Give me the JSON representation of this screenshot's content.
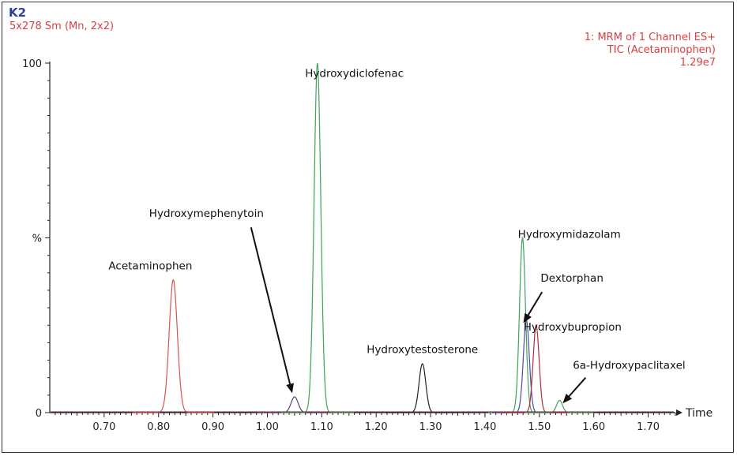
{
  "header": {
    "sample_id": "K2",
    "smoothing": "5x278 Sm (Mn, 2x2)",
    "channel": "1: MRM of 1 Channel ES+",
    "trace": "TIC (Acetaminophen)",
    "intensity": "1.29e7"
  },
  "chart_data": {
    "type": "line",
    "title": "",
    "xlabel": "Time",
    "ylabel": "%",
    "xlim": [
      0.6,
      1.75
    ],
    "ylim": [
      0,
      100
    ],
    "x_ticks": [
      0.7,
      0.8,
      0.9,
      1.0,
      1.1,
      1.2,
      1.3,
      1.4,
      1.5,
      1.6,
      1.7
    ],
    "x_tick_labels": [
      "0.70",
      "0.80",
      "0.90",
      "1.00",
      "1.10",
      "1.20",
      "1.30",
      "1.40",
      "1.50",
      "1.60",
      "1.70"
    ],
    "y_tick_labels": [
      "100",
      "%",
      "0"
    ],
    "grid": false,
    "legend": "none",
    "series": [
      {
        "name": "Acetaminophen",
        "color": "#d9534f",
        "rt": 0.827,
        "height": 38,
        "width": 0.0075
      },
      {
        "name": "Hydroxymephenytoin",
        "color": "#5a4070",
        "rt": 1.05,
        "height": 4.5,
        "width": 0.0065
      },
      {
        "name": "Hydroxydiclofenac",
        "color": "#3fa35c",
        "rt": 1.092,
        "height": 100,
        "width": 0.0062
      },
      {
        "name": "Hydroxytestosterone",
        "color": "#222222",
        "rt": 1.285,
        "height": 14,
        "width": 0.0062
      },
      {
        "name": "Hydroxymidazolam",
        "color": "#3fa35c",
        "rt": 1.469,
        "height": 50,
        "width": 0.0055
      },
      {
        "name": "Dextorphan",
        "color": "#4a4aa8",
        "rt": 1.476,
        "height": 26.5,
        "width": 0.0055
      },
      {
        "name": "Hydroxybupropion",
        "color": "#b0303a",
        "rt": 1.494,
        "height": 25,
        "width": 0.0055
      },
      {
        "name": "6a-Hydroxypaclitaxel",
        "color": "#3fa35c",
        "rt": 1.537,
        "height": 3.5,
        "width": 0.0055
      }
    ],
    "annotations": [
      {
        "text": "Acetaminophen",
        "x": 0.785,
        "y": 41,
        "arrow": false
      },
      {
        "text": "Hydroxymephenytoin",
        "x": 0.888,
        "y": 56,
        "arrow": true,
        "arrow_to": [
          1.045,
          6
        ]
      },
      {
        "text": "Hydroxydiclofenac",
        "x": 1.16,
        "y": 96,
        "arrow": false
      },
      {
        "text": "Hydroxytestosterone",
        "x": 1.285,
        "y": 17,
        "arrow": false
      },
      {
        "text": "Hydroxymidazolam",
        "x": 1.555,
        "y": 50,
        "arrow": false
      },
      {
        "text": "Dextorphan",
        "x": 1.56,
        "y": 37.5,
        "arrow": true,
        "arrow_to": [
          1.472,
          26
        ]
      },
      {
        "text": "Hydroxybupropion",
        "x": 1.561,
        "y": 23.5,
        "arrow": false
      },
      {
        "text": "6a-Hydroxypaclitaxel",
        "x": 1.665,
        "y": 12.5,
        "arrow": true,
        "arrow_to": [
          1.545,
          3
        ]
      }
    ]
  }
}
